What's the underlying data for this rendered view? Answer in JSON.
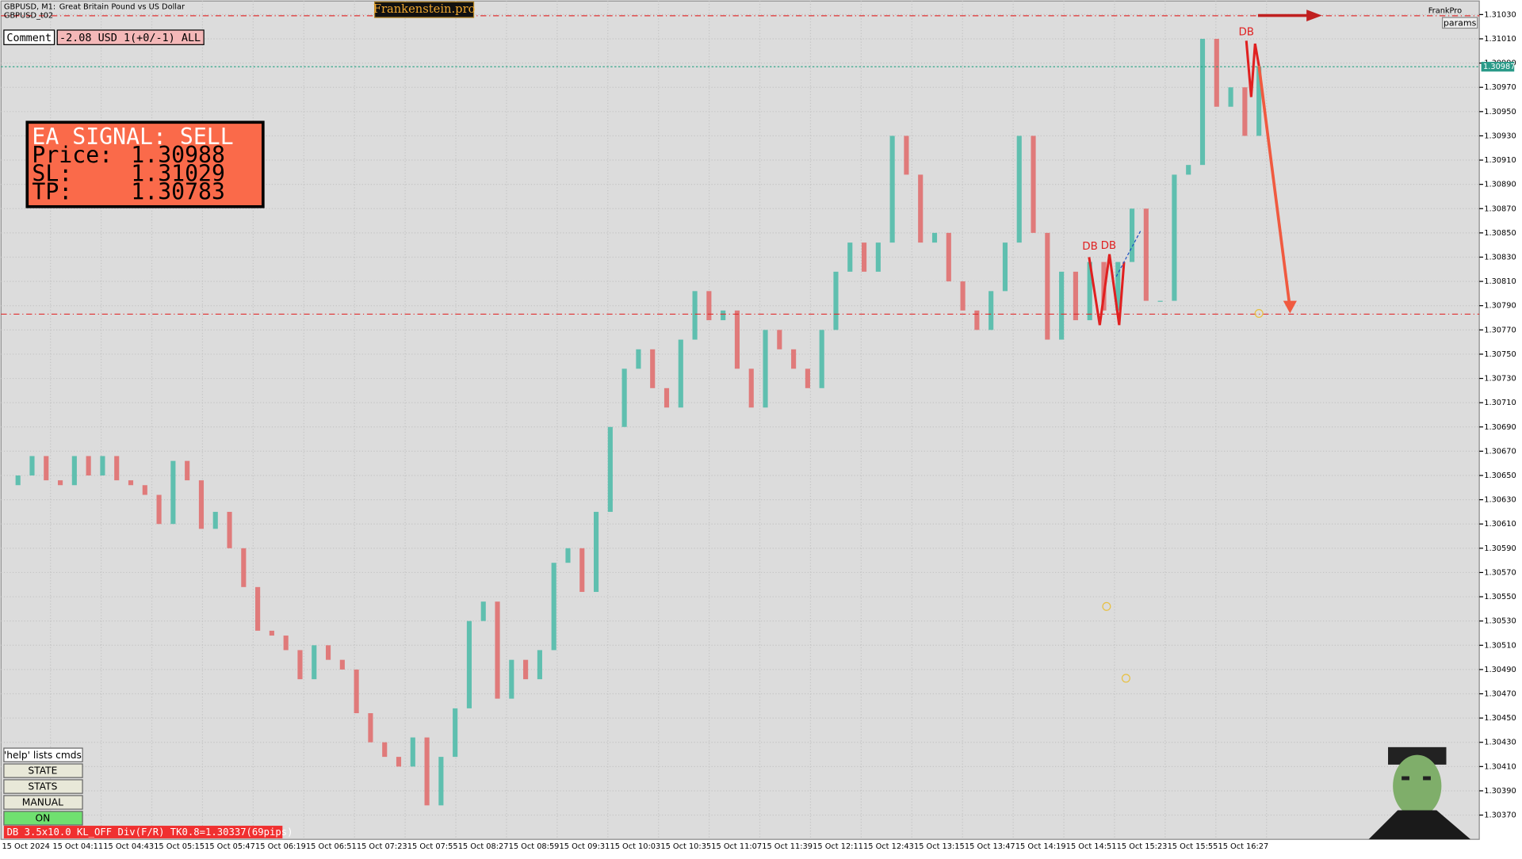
{
  "header": {
    "symbol": "GBPUSD, M1:",
    "description": "Great Britain Pound vs US Dollar",
    "sub": "GBPUSD_t02",
    "brand": "Frankenstein.pro",
    "corner": "FrankPro",
    "params": "params"
  },
  "comment": {
    "label": "Comment",
    "value": "-2.08 USD 1(+0/-1) ALL"
  },
  "signal": {
    "title": "EA SIGNAL: SELL",
    "price_label": "Price:",
    "price": 1.30988,
    "sl_label": "SL:",
    "sl": 1.31029,
    "tp_label": "TP:",
    "tp": 1.30783
  },
  "patterns": [
    "DB",
    "DB",
    "DB"
  ],
  "buttons": [
    "'help' lists cmds",
    "STATE",
    "STATS",
    "MANUAL",
    "ON"
  ],
  "status": "DB 3.5x10.0 KL_OFF Div(F/R) TK0.8=1.30337(69pips)",
  "chart_data": {
    "type": "candlestick",
    "up_color": "#5fbfaf",
    "down_color": "#e07a7a",
    "grid": true,
    "values": [
      1.30642,
      1.3065,
      1.30666,
      1.30646,
      1.30642,
      1.30666,
      1.3065,
      1.30666,
      1.30646,
      1.30642,
      1.30634,
      1.3061,
      1.30662,
      1.30646,
      1.30606,
      1.3062,
      1.3059,
      1.30558,
      1.30522,
      1.30518,
      1.30506,
      1.30482,
      1.3051,
      1.30498,
      1.3049,
      1.30454,
      1.3043,
      1.30418,
      1.3041,
      1.30434,
      1.30378,
      1.30418,
      1.30458,
      1.3053,
      1.30546,
      1.30466,
      1.30498,
      1.30482,
      1.30506,
      1.30578,
      1.3059,
      1.30554,
      1.3062,
      1.3069,
      1.30738,
      1.30754,
      1.30722,
      1.30706,
      1.30762,
      1.30802,
      1.30778,
      1.30786,
      1.30738,
      1.30706,
      1.3077,
      1.30754,
      1.30738,
      1.30722,
      1.3077,
      1.30818,
      1.30842,
      1.30818,
      1.30842,
      1.3093,
      1.30898,
      1.30842,
      1.3085,
      1.3081,
      1.30786,
      1.3077,
      1.30802,
      1.30842,
      1.3093,
      1.3085,
      1.30762,
      1.30818,
      1.30778,
      1.30826,
      1.30786,
      1.30826,
      1.3087,
      1.30794,
      1.30794,
      1.30898,
      1.30906,
      1.3101,
      1.30954,
      1.3097,
      1.3093,
      1.30987
    ],
    "current_price": {
      "value": 1.30987,
      "label": "1.30987"
    },
    "ylim": [
      1.3035,
      1.31042
    ],
    "yticks": [
      {
        "value": 1.3103,
        "label": "1.31030"
      },
      {
        "value": 1.3101,
        "label": "1.31010"
      },
      {
        "value": 1.3099,
        "label": "1.30990"
      },
      {
        "value": 1.3097,
        "label": "1.30970"
      },
      {
        "value": 1.3095,
        "label": "1.30950"
      },
      {
        "value": 1.3093,
        "label": "1.30930"
      },
      {
        "value": 1.3091,
        "label": "1.30910"
      },
      {
        "value": 1.3089,
        "label": "1.30890"
      },
      {
        "value": 1.3087,
        "label": "1.30870"
      },
      {
        "value": 1.3085,
        "label": "1.30850"
      },
      {
        "value": 1.3083,
        "label": "1.30830"
      },
      {
        "value": 1.3081,
        "label": "1.30810"
      },
      {
        "value": 1.3079,
        "label": "1.30790"
      },
      {
        "value": 1.3077,
        "label": "1.30770"
      },
      {
        "value": 1.3075,
        "label": "1.30750"
      },
      {
        "value": 1.3073,
        "label": "1.30730"
      },
      {
        "value": 1.3071,
        "label": "1.30710"
      },
      {
        "value": 1.3069,
        "label": "1.30690"
      },
      {
        "value": 1.3067,
        "label": "1.30670"
      },
      {
        "value": 1.3065,
        "label": "1.30650"
      },
      {
        "value": 1.3063,
        "label": "1.30630"
      },
      {
        "value": 1.3061,
        "label": "1.30610"
      },
      {
        "value": 1.3059,
        "label": "1.30590"
      },
      {
        "value": 1.3057,
        "label": "1.30570"
      },
      {
        "value": 1.3055,
        "label": "1.30550"
      },
      {
        "value": 1.3053,
        "label": "1.30530"
      },
      {
        "value": 1.3051,
        "label": "1.30510"
      },
      {
        "value": 1.3049,
        "label": "1.30490"
      },
      {
        "value": 1.3047,
        "label": "1.30470"
      },
      {
        "value": 1.3045,
        "label": "1.30450"
      },
      {
        "value": 1.3043,
        "label": "1.30430"
      },
      {
        "value": 1.3041,
        "label": "1.30410"
      },
      {
        "value": 1.3039,
        "label": "1.30390"
      },
      {
        "value": 1.3037,
        "label": "1.30370"
      }
    ],
    "xtick_labels": [
      "15 Oct 2024",
      "15 Oct 04:11",
      "15 Oct 04:43",
      "15 Oct 05:15",
      "15 Oct 05:47",
      "15 Oct 06:19",
      "15 Oct 06:51",
      "15 Oct 07:23",
      "15 Oct 07:55",
      "15 Oct 08:27",
      "15 Oct 08:59",
      "15 Oct 09:31",
      "15 Oct 10:03",
      "15 Oct 10:35",
      "15 Oct 11:07",
      "15 Oct 11:39",
      "15 Oct 12:11",
      "15 Oct 12:43",
      "15 Oct 13:15",
      "15 Oct 13:47",
      "15 Oct 14:19",
      "15 Oct 14:51",
      "15 Oct 15:23",
      "15 Oct 15:55",
      "15 Oct 16:27"
    ]
  }
}
